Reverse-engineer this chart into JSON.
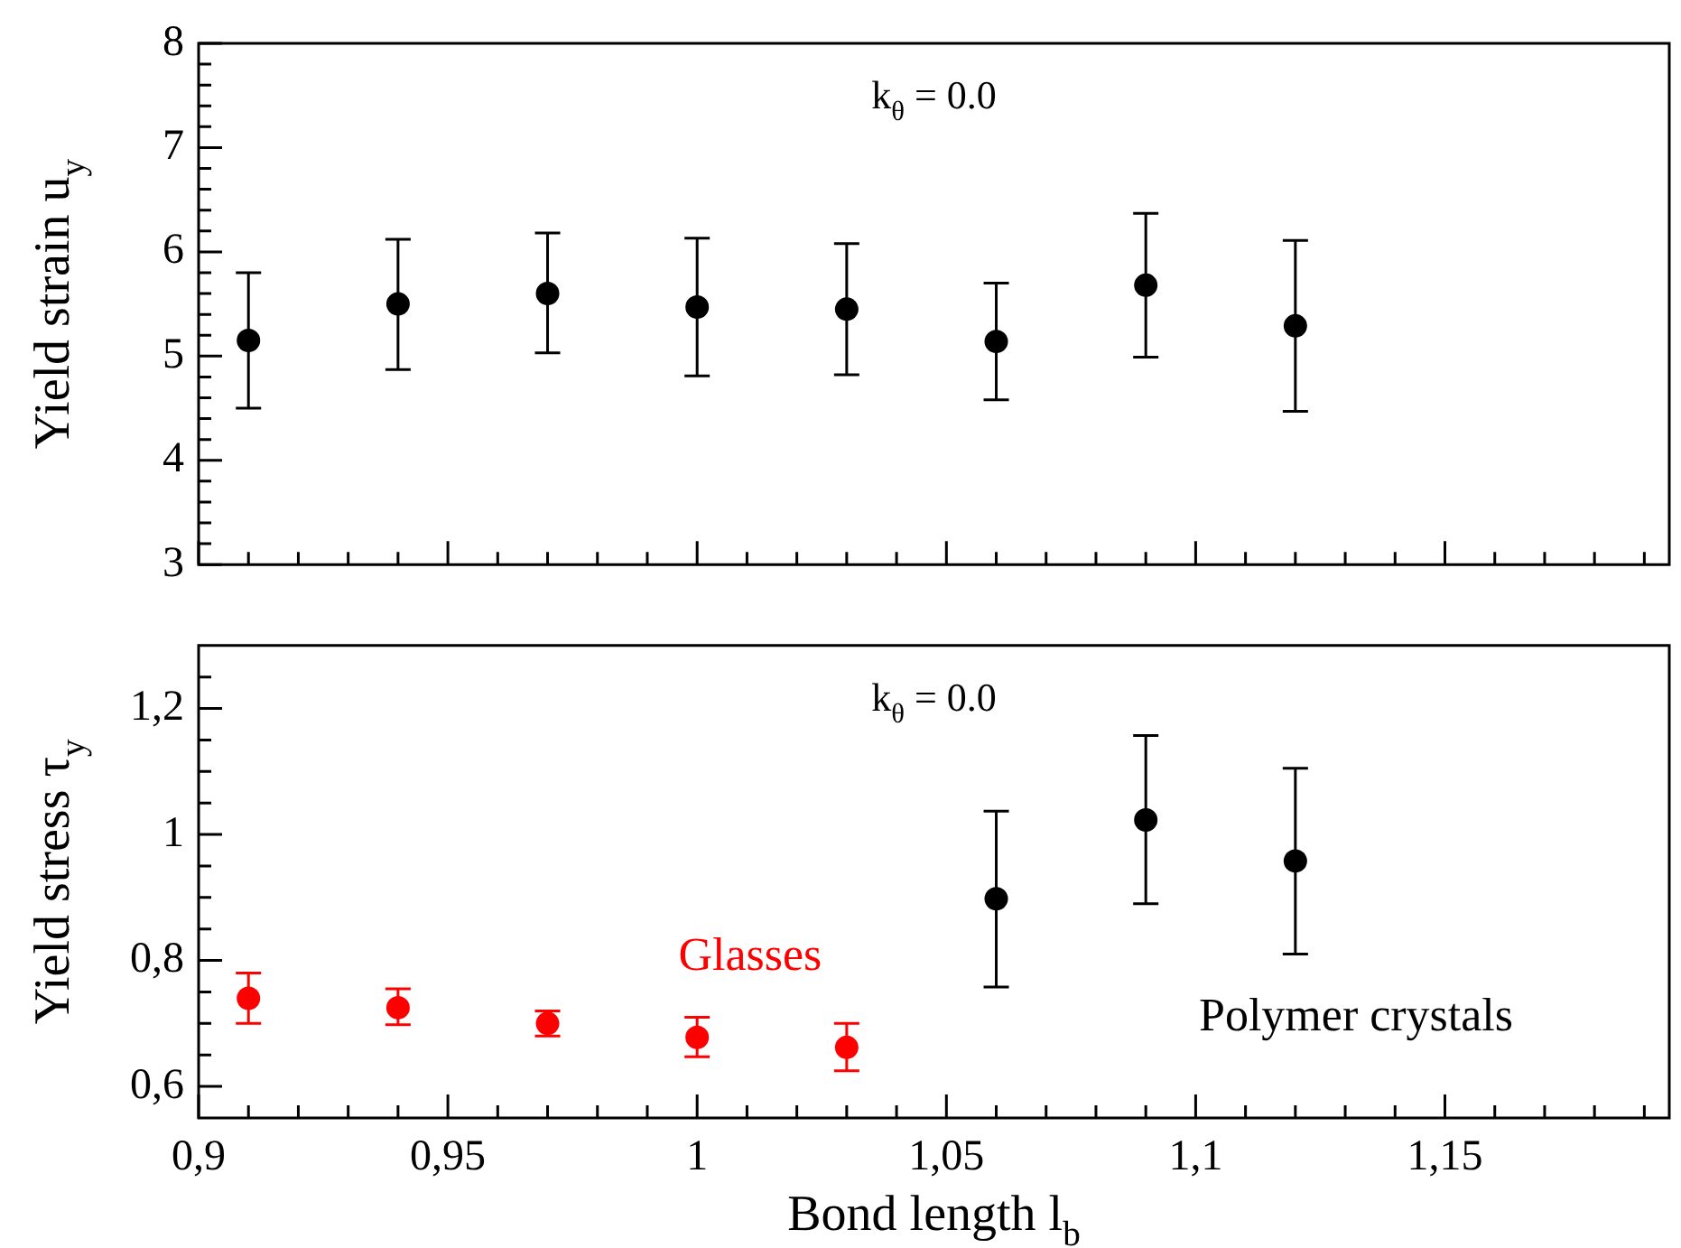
{
  "chart_data": [
    {
      "type": "scatter",
      "annotations": [
        "k$_{θ}$ = 0.0"
      ],
      "ylabel": "Yield strain u$_{y}$",
      "x": [
        0.91,
        0.94,
        0.97,
        1.0,
        1.03,
        1.06,
        1.09,
        1.12
      ],
      "series": [
        {
          "color": "#000000",
          "values": [
            5.15,
            5.5,
            5.6,
            5.47,
            5.45,
            5.14,
            5.68,
            5.29
          ],
          "errors": [
            [
              4.5,
              5.8
            ],
            [
              4.87,
              6.12
            ],
            [
              5.03,
              6.18
            ],
            [
              4.81,
              6.13
            ],
            [
              4.82,
              6.08
            ],
            [
              4.58,
              5.7
            ],
            [
              4.99,
              6.37
            ],
            [
              4.47,
              6.11
            ]
          ]
        }
      ],
      "xlim": [
        0.9,
        1.195
      ],
      "ylim": [
        3,
        8
      ],
      "xticks": [
        0.9,
        {
          "value": 0.91,
          "label": null
        },
        {
          "value": 0.92,
          "label": null
        },
        {
          "value": 0.93,
          "label": null
        },
        {
          "value": 0.94,
          "label": null
        },
        0.95,
        {
          "value": 0.96,
          "label": null
        },
        {
          "value": 0.97,
          "label": null
        },
        {
          "value": 0.98,
          "label": null
        },
        {
          "value": 0.99,
          "label": null
        },
        1,
        {
          "value": 1.01,
          "label": null
        },
        {
          "value": 1.02,
          "label": null
        },
        {
          "value": 1.03,
          "label": null
        },
        {
          "value": 1.04,
          "label": null
        },
        1.05,
        {
          "value": 1.06,
          "label": null
        },
        {
          "value": 1.07,
          "label": null
        },
        {
          "value": 1.08,
          "label": null
        },
        {
          "value": 1.09,
          "label": null
        },
        1.1,
        {
          "value": 1.11,
          "label": null
        },
        {
          "value": 1.12,
          "label": null
        },
        {
          "value": 1.13,
          "label": null
        },
        {
          "value": 1.14,
          "label": null
        },
        1.15,
        {
          "value": 1.16,
          "label": null
        },
        {
          "value": 1.17,
          "label": null
        },
        {
          "value": 1.18,
          "label": null
        },
        {
          "value": 1.19,
          "label": null
        }
      ],
      "yticks": [
        3,
        {
          "value": 3.2,
          "label": null
        },
        {
          "value": 3.4,
          "label": null
        },
        {
          "value": 3.6,
          "label": null
        },
        {
          "value": 3.8,
          "label": null
        },
        4,
        {
          "value": 4.2,
          "label": null
        },
        {
          "value": 4.4,
          "label": null
        },
        {
          "value": 4.6,
          "label": null
        },
        {
          "value": 4.8,
          "label": null
        },
        5,
        {
          "value": 5.2,
          "label": null
        },
        {
          "value": 5.4,
          "label": null
        },
        {
          "value": 5.6,
          "label": null
        },
        {
          "value": 5.8,
          "label": null
        },
        6,
        {
          "value": 6.2,
          "label": null
        },
        {
          "value": 6.4,
          "label": null
        },
        {
          "value": 6.6,
          "label": null
        },
        {
          "value": 6.8,
          "label": null
        },
        7,
        {
          "value": 7.2,
          "label": null
        },
        {
          "value": 7.4,
          "label": null
        },
        {
          "value": 7.6,
          "label": null
        },
        {
          "value": 7.8,
          "label": null
        },
        8
      ],
      "tick_labels": "y",
      "grid": false,
      "legend": false,
      "marker": "circle"
    },
    {
      "type": "scatter",
      "annotations": [
        "k$_{θ}$ = 0.0"
      ],
      "ylabel": "Yield stress τ$_{y}$",
      "xlabel": "Bond length l$_{b}$",
      "x": [
        0.91,
        0.94,
        0.97,
        1.0,
        1.03,
        1.06,
        1.09,
        1.12
      ],
      "series": [
        {
          "name": "Glasses",
          "color": "#ff0000",
          "values": [
            0.74,
            0.725,
            0.7,
            0.678,
            0.662,
            null,
            null,
            null
          ],
          "errors": [
            [
              0.7,
              0.78
            ],
            [
              0.698,
              0.755
            ],
            [
              0.68,
              0.72
            ],
            [
              0.647,
              0.71
            ],
            [
              0.625,
              0.7
            ],
            null,
            null,
            null
          ]
        },
        {
          "name": "Polymer crystals",
          "color": "#000000",
          "values": [
            null,
            null,
            null,
            null,
            null,
            0.898,
            1.023,
            0.958
          ],
          "errors": [
            null,
            null,
            null,
            null,
            null,
            [
              0.758,
              1.037
            ],
            [
              0.89,
              1.157
            ],
            [
              0.81,
              1.105
            ]
          ]
        }
      ],
      "xlim": [
        0.9,
        1.195
      ],
      "ylim": [
        0.55,
        1.3
      ],
      "xticks": [
        {
          "value": 0.9,
          "label": "0,9"
        },
        {
          "value": 0.91,
          "label": null
        },
        {
          "value": 0.92,
          "label": null
        },
        {
          "value": 0.93,
          "label": null
        },
        {
          "value": 0.94,
          "label": null
        },
        {
          "value": 0.95,
          "label": "0,95"
        },
        {
          "value": 0.96,
          "label": null
        },
        {
          "value": 0.97,
          "label": null
        },
        {
          "value": 0.98,
          "label": null
        },
        {
          "value": 0.99,
          "label": null
        },
        {
          "value": 1,
          "label": "1"
        },
        {
          "value": 1.01,
          "label": null
        },
        {
          "value": 1.02,
          "label": null
        },
        {
          "value": 1.03,
          "label": null
        },
        {
          "value": 1.04,
          "label": null
        },
        {
          "value": 1.05,
          "label": "1,05"
        },
        {
          "value": 1.06,
          "label": null
        },
        {
          "value": 1.07,
          "label": null
        },
        {
          "value": 1.08,
          "label": null
        },
        {
          "value": 1.09,
          "label": null
        },
        {
          "value": 1.1,
          "label": "1,1"
        },
        {
          "value": 1.11,
          "label": null
        },
        {
          "value": 1.12,
          "label": null
        },
        {
          "value": 1.13,
          "label": null
        },
        {
          "value": 1.14,
          "label": null
        },
        {
          "value": 1.15,
          "label": "1,15"
        },
        {
          "value": 1.16,
          "label": null
        },
        {
          "value": 1.17,
          "label": null
        },
        {
          "value": 1.18,
          "label": null
        },
        {
          "value": 1.19,
          "label": null
        }
      ],
      "yticks": [
        {
          "value": 0.6,
          "label": "0,6"
        },
        {
          "value": 0.65,
          "label": null
        },
        {
          "value": 0.7,
          "label": null
        },
        {
          "value": 0.75,
          "label": null
        },
        {
          "value": 0.8,
          "label": "0,8"
        },
        {
          "value": 0.85,
          "label": null
        },
        {
          "value": 0.9,
          "label": null
        },
        {
          "value": 0.95,
          "label": null
        },
        1,
        {
          "value": 1.05,
          "label": null
        },
        {
          "value": 1.1,
          "label": null
        },
        {
          "value": 1.15,
          "label": null
        },
        {
          "value": 1.2,
          "label": "1,2"
        },
        {
          "value": 1.25,
          "label": null
        }
      ],
      "grid": false,
      "legend": false,
      "marker": "circle"
    }
  ]
}
